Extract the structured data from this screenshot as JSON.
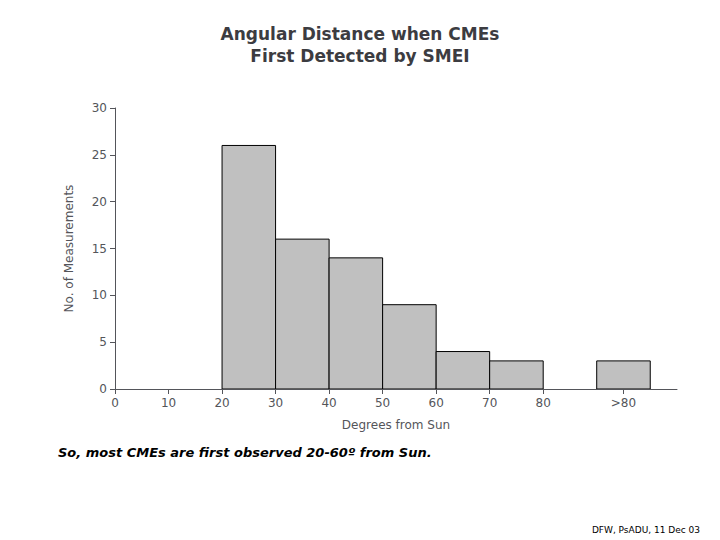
{
  "chart_data": {
    "type": "histogram",
    "title": "Angular Distance when CMEs\nFirst Detected by SMEI",
    "subtitle": "So, most CMEs are first observed 20-60º from Sun.",
    "annotations": [
      "DFW, PsADU, 11 Dec 03"
    ],
    "x_label": "Degrees from Sun",
    "y_label": "No. of Measurements",
    "bins": [
      0,
      10,
      20,
      30,
      40,
      50,
      60,
      70,
      80,
      90,
      100
    ],
    "values": [
      0,
      0,
      26,
      16,
      14,
      9,
      4,
      3,
      0,
      3
    ],
    "color": "#C0C0C0",
    "xlim": [
      0,
      105
    ],
    "xticks": [
      0,
      10,
      20,
      30,
      40,
      50,
      60,
      70,
      80,
      {
        "value": 95,
        "label": ">80"
      }
    ],
    "ylim": [
      0,
      30
    ],
    "yticks": [
      0,
      5,
      10,
      15,
      20,
      25,
      30
    ],
    "grid": false
  }
}
